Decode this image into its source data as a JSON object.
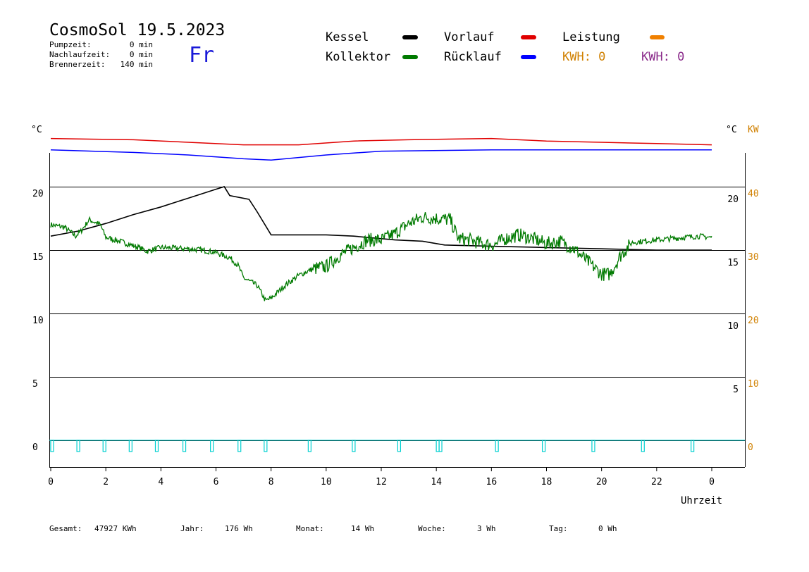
{
  "header": {
    "title": "CosmoSol 19.5.2023",
    "weekday": "Fr",
    "stats": [
      {
        "label": "Pumpzeit:",
        "value": "0 min"
      },
      {
        "label": "Nachlaufzeit:",
        "value": "0 min"
      },
      {
        "label": "Brennerzeit:",
        "value": "140 min"
      }
    ]
  },
  "legend": [
    {
      "label": "Kessel",
      "color": "#000000"
    },
    {
      "label": "Vorlauf",
      "color": "#e00000"
    },
    {
      "label": "Leistung",
      "color": "#f08000"
    },
    {
      "label": "Kollektor",
      "color": "#007a00"
    },
    {
      "label": "Rücklauf",
      "color": "#0000ff"
    }
  ],
  "kwh_labels": [
    {
      "text": "KWH: 0",
      "color": "#d08000"
    },
    {
      "text": "KWH: 0",
      "color": "#8a2a8a"
    }
  ],
  "axis_units": {
    "left": "°C",
    "right_temp": "°C",
    "right_power": "KW",
    "x": "Uhrzeit"
  },
  "footer": [
    {
      "label": "Gesamt:",
      "value": "47927 KWh"
    },
    {
      "label": "Jahr:",
      "value": "176 Wh"
    },
    {
      "label": "Monat:",
      "value": "14 Wh"
    },
    {
      "label": "Woche:",
      "value": "3 Wh"
    },
    {
      "label": "Tag:",
      "value": "0 Wh"
    }
  ],
  "colors": {
    "pump": "#00d0d0",
    "power_axis": "#d08000"
  },
  "chart_data": {
    "type": "line",
    "xlabel": "Uhrzeit",
    "xlim": [
      0,
      24
    ],
    "ylim": [
      -2,
      22
    ],
    "x_ticks": [
      "0",
      "2",
      "4",
      "6",
      "8",
      "10",
      "12",
      "14",
      "16",
      "18",
      "20",
      "22",
      "0"
    ],
    "y_ticks_left": [
      "0",
      "5",
      "10",
      "15",
      "20"
    ],
    "y_ticks_right_temp": [
      "5",
      "10",
      "15",
      "20"
    ],
    "y_ticks_right_power": [
      "0",
      "10",
      "20",
      "30",
      "40"
    ],
    "grid": true,
    "series": [
      {
        "name": "Kessel",
        "color": "#000000",
        "points": [
          [
            0,
            16.1
          ],
          [
            1,
            16.5
          ],
          [
            2,
            17.1
          ],
          [
            3,
            17.8
          ],
          [
            4,
            18.4
          ],
          [
            5,
            19.1
          ],
          [
            6,
            19.8
          ],
          [
            6.3,
            20
          ],
          [
            6.5,
            19.3
          ],
          [
            7.2,
            19
          ],
          [
            7.5,
            18
          ],
          [
            8,
            16.2
          ],
          [
            10,
            16.2
          ],
          [
            11,
            16.1
          ],
          [
            12.5,
            15.8
          ],
          [
            13.5,
            15.7
          ],
          [
            14.3,
            15.4
          ],
          [
            16,
            15.3
          ],
          [
            18,
            15.2
          ],
          [
            20,
            15.1
          ],
          [
            22,
            15.0
          ],
          [
            24,
            15.0
          ]
        ]
      },
      {
        "name": "Kollektor",
        "color": "#007a00",
        "points": [
          [
            0,
            17.0
          ],
          [
            0.5,
            16.8
          ],
          [
            0.9,
            16.1
          ],
          [
            1.1,
            16.5
          ],
          [
            1.4,
            17.4
          ],
          [
            1.8,
            17.0
          ],
          [
            2.0,
            16.0
          ],
          [
            2.5,
            15.7
          ],
          [
            3.2,
            15.2
          ],
          [
            3.5,
            14.9
          ],
          [
            4.0,
            15.2
          ],
          [
            5.0,
            15.1
          ],
          [
            5.5,
            15.0
          ],
          [
            6.0,
            14.8
          ],
          [
            6.5,
            14.4
          ],
          [
            6.8,
            13.8
          ],
          [
            7.0,
            12.8
          ],
          [
            7.5,
            12.2
          ],
          [
            7.8,
            11.0
          ],
          [
            8.0,
            11.2
          ],
          [
            8.5,
            12.2
          ],
          [
            9.0,
            13.0
          ],
          [
            9.5,
            13.5
          ],
          [
            10.0,
            13.7
          ],
          [
            10.5,
            14.6
          ],
          [
            11.0,
            15.2
          ],
          [
            11.5,
            15.8
          ],
          [
            12.0,
            15.8
          ],
          [
            12.5,
            16.3
          ],
          [
            13.0,
            17.1
          ],
          [
            13.5,
            17.6
          ],
          [
            14.0,
            17.5
          ],
          [
            14.5,
            17.4
          ],
          [
            14.8,
            15.9
          ],
          [
            15.2,
            15.8
          ],
          [
            15.7,
            15.5
          ],
          [
            16.1,
            15.4
          ],
          [
            16.5,
            15.9
          ],
          [
            17.0,
            16.2
          ],
          [
            17.5,
            15.9
          ],
          [
            18.0,
            15.5
          ],
          [
            18.5,
            15.7
          ],
          [
            19.0,
            15.1
          ],
          [
            19.5,
            14.1
          ],
          [
            20.0,
            13.1
          ],
          [
            20.3,
            13.1
          ],
          [
            20.7,
            14.6
          ],
          [
            21.1,
            15.6
          ],
          [
            21.5,
            15.7
          ],
          [
            22.0,
            15.8
          ],
          [
            22.5,
            15.9
          ],
          [
            23.0,
            16.0
          ],
          [
            23.5,
            16.1
          ],
          [
            24.0,
            16.0
          ]
        ]
      },
      {
        "name": "Vorlauf",
        "color": "#e00000",
        "points": [
          [
            0,
            23.8
          ],
          [
            3,
            23.7
          ],
          [
            5,
            23.5
          ],
          [
            7,
            23.3
          ],
          [
            9,
            23.3
          ],
          [
            11,
            23.6
          ],
          [
            13,
            23.7
          ],
          [
            16,
            23.8
          ],
          [
            18,
            23.6
          ],
          [
            20,
            23.5
          ],
          [
            22,
            23.4
          ],
          [
            24,
            23.3
          ]
        ]
      },
      {
        "name": "Rücklauf",
        "color": "#0000ff",
        "points": [
          [
            0,
            22.9
          ],
          [
            3,
            22.7
          ],
          [
            5,
            22.5
          ],
          [
            7,
            22.2
          ],
          [
            8,
            22.1
          ],
          [
            10,
            22.5
          ],
          [
            12,
            22.8
          ],
          [
            16,
            22.9
          ],
          [
            18,
            22.9
          ],
          [
            20,
            22.9
          ],
          [
            24,
            22.9
          ]
        ]
      },
      {
        "name": "Pumpe",
        "color": "#00d0d0",
        "pulses": [
          0.05,
          1.0,
          1.95,
          2.9,
          3.85,
          4.85,
          5.85,
          6.85,
          7.8,
          9.4,
          11.0,
          12.65,
          14.05,
          14.15,
          16.2,
          17.9,
          19.7,
          21.5,
          23.3
        ]
      }
    ]
  }
}
